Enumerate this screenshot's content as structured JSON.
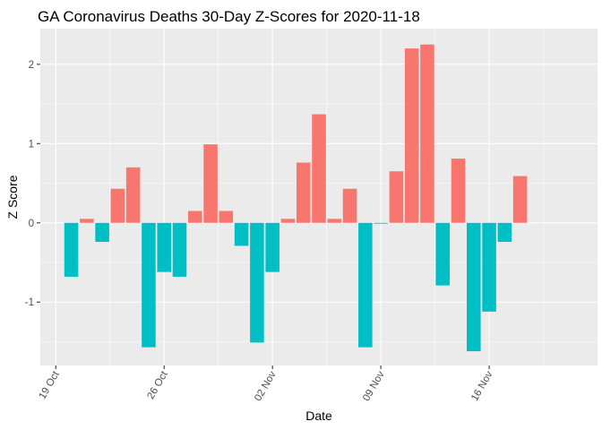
{
  "chart_data": {
    "type": "bar",
    "title": "GA Coronavirus Deaths 30-Day Z-Scores for 2020-11-18",
    "xlabel": "Date",
    "ylabel": "Z Score",
    "ylim": [
      -1.8,
      2.45
    ],
    "y_ticks": [
      -1,
      0,
      1,
      2
    ],
    "x_range": [
      "2020-10-18",
      "2020-11-23"
    ],
    "x_ticks": [
      {
        "date": "2020-10-19",
        "label": "19 Oct"
      },
      {
        "date": "2020-10-26",
        "label": "26 Oct"
      },
      {
        "date": "2020-11-02",
        "label": "02 Nov"
      },
      {
        "date": "2020-11-09",
        "label": "09 Nov"
      },
      {
        "date": "2020-11-16",
        "label": "16 Nov"
      }
    ],
    "grid": true,
    "legend": "none",
    "colors": {
      "positive": "#F8766D",
      "negative": "#00BFC4",
      "panel": "#EBEBEB"
    },
    "x": [
      "2020-10-20",
      "2020-10-21",
      "2020-10-22",
      "2020-10-23",
      "2020-10-24",
      "2020-10-25",
      "2020-10-26",
      "2020-10-27",
      "2020-10-28",
      "2020-10-29",
      "2020-10-30",
      "2020-10-31",
      "2020-11-01",
      "2020-11-02",
      "2020-11-03",
      "2020-11-04",
      "2020-11-05",
      "2020-11-06",
      "2020-11-07",
      "2020-11-08",
      "2020-11-09",
      "2020-11-10",
      "2020-11-11",
      "2020-11-12",
      "2020-11-13",
      "2020-11-14",
      "2020-11-15",
      "2020-11-16",
      "2020-11-17",
      "2020-11-18"
    ],
    "values": [
      -0.68,
      0.05,
      -0.24,
      0.43,
      0.7,
      -1.57,
      -0.62,
      -0.68,
      0.15,
      0.99,
      0.15,
      -0.29,
      -1.51,
      -0.62,
      0.05,
      0.76,
      1.37,
      0.05,
      0.43,
      -1.57,
      -0.01,
      0.65,
      2.2,
      2.25,
      -0.79,
      0.81,
      -1.62,
      -1.12,
      -0.24,
      0.59
    ]
  }
}
